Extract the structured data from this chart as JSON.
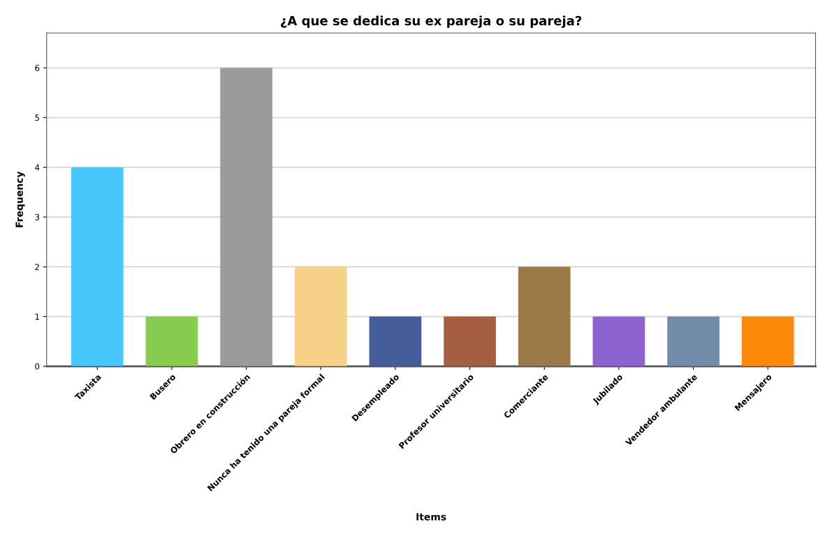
{
  "chart_data": {
    "type": "bar",
    "title": "¿A que se dedica su ex pareja o su pareja?",
    "xlabel": "Items",
    "ylabel": "Frequency",
    "categories": [
      "Taxista",
      "Busero",
      "Obrero en construcción",
      "Nunca ha tenido una pareja formal",
      "Desempleado",
      "Profesor universitario",
      "Comerciante",
      "Jubilado",
      "Vendedor ambulante",
      "Mensajero"
    ],
    "values": [
      4,
      1,
      6,
      2,
      1,
      1,
      2,
      1,
      1,
      1
    ],
    "colors": [
      "#47c8fc",
      "#87cc4e",
      "#9b9b9b",
      "#f6d187",
      "#455d99",
      "#a65e40",
      "#9b7a48",
      "#8c63d1",
      "#738ca9",
      "#fd8809"
    ],
    "ylim": [
      0,
      6.7
    ],
    "yticks": [
      0,
      1,
      2,
      3,
      4,
      5,
      6
    ],
    "grid": "y",
    "legend": false
  }
}
